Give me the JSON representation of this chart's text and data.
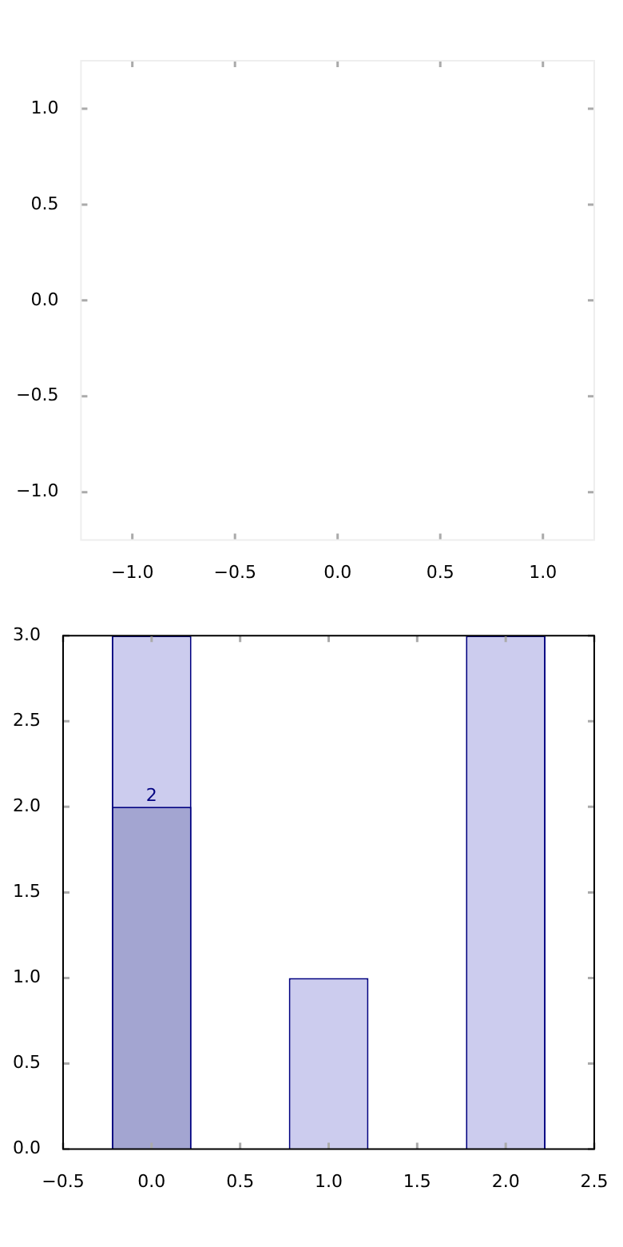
{
  "chart_data": [
    {
      "type": "scatter",
      "xlim": [
        -1.25,
        1.25
      ],
      "ylim": [
        -1.25,
        1.25
      ],
      "xticks": [
        {
          "value": -1,
          "label": "−1.0"
        },
        {
          "value": -0.5,
          "label": "−0.5"
        },
        {
          "value": 0,
          "label": "0.0"
        },
        {
          "value": 0.5,
          "label": "0.5"
        },
        {
          "value": 1,
          "label": "1.0"
        }
      ],
      "yticks": [
        {
          "value": -1,
          "label": "−1.0"
        },
        {
          "value": -0.5,
          "label": "−0.5"
        },
        {
          "value": 0,
          "label": "0.0"
        },
        {
          "value": 0.5,
          "label": "0.5"
        },
        {
          "value": 1,
          "label": "1.0"
        }
      ]
    },
    {
      "type": "bar",
      "x": [
        0,
        1,
        2
      ],
      "series": [
        {
          "color": "#ccccee",
          "values": [
            3,
            1,
            3
          ]
        },
        {
          "color": "#a3a5d1",
          "values": [
            2,
            null,
            null
          ],
          "value_labels": [
            "2",
            null,
            null
          ]
        }
      ],
      "xlim": [
        -0.5,
        2.5
      ],
      "xticks": [
        {
          "value": -0.5,
          "label": "−0.5"
        },
        {
          "value": 0,
          "label": "0.0"
        },
        {
          "value": 0.5,
          "label": "0.5"
        },
        {
          "value": 1,
          "label": "1.0"
        },
        {
          "value": 1.5,
          "label": "1.5"
        },
        {
          "value": 2,
          "label": "2.0"
        },
        {
          "value": 2.5,
          "label": "2.5"
        }
      ],
      "ylim": [
        0,
        3
      ],
      "yticks": [
        {
          "value": 0,
          "label": "0.0"
        },
        {
          "value": 0.5,
          "label": "0.5"
        },
        {
          "value": 1,
          "label": "1.0"
        },
        {
          "value": 1.5,
          "label": "1.5"
        },
        {
          "value": 2,
          "label": "2.0"
        },
        {
          "value": 2.5,
          "label": "2.5"
        },
        {
          "value": 3,
          "label": "3.0"
        }
      ]
    }
  ]
}
